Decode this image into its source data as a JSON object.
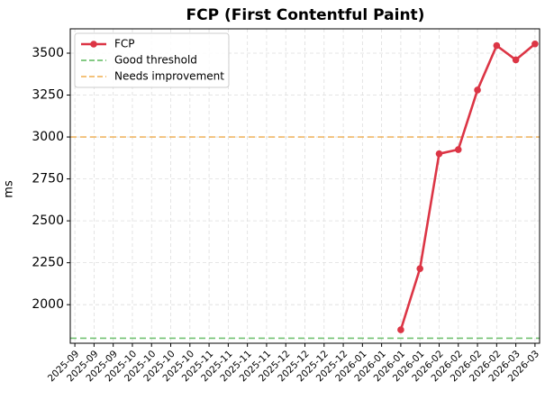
{
  "chart_data": {
    "type": "line",
    "title": "FCP (First Contentful Paint)",
    "y_label": "ms",
    "categories": [
      "2025-09",
      "2025-09",
      "2025-09",
      "2025-10",
      "2025-10",
      "2025-10",
      "2025-10",
      "2025-11",
      "2025-11",
      "2025-11",
      "2025-11",
      "2025-12",
      "2025-12",
      "2025-12",
      "2025-12",
      "2026-01",
      "2026-01",
      "2026-01",
      "2026-01",
      "2026-02",
      "2026-02",
      "2026-02",
      "2026-02",
      "2026-03",
      "2026-03"
    ],
    "series": [
      {
        "name": "FCP",
        "color": "#dc3545",
        "values": [
          null,
          null,
          null,
          null,
          null,
          null,
          null,
          null,
          null,
          null,
          null,
          null,
          null,
          null,
          null,
          null,
          null,
          1850,
          2215,
          2900,
          2925,
          3280,
          3545,
          3460,
          3555
        ]
      }
    ],
    "thresholds": [
      {
        "name": "Good threshold",
        "value": 1800,
        "color": "#5cb85c"
      },
      {
        "name": "Needs improvement",
        "value": 3000,
        "color": "#f0ad4e"
      }
    ],
    "ylim": [
      1770,
      3645
    ],
    "yticks": [
      2000,
      2250,
      2500,
      2750,
      3000,
      3250,
      3500
    ],
    "grid": true,
    "legend": "upper left"
  }
}
